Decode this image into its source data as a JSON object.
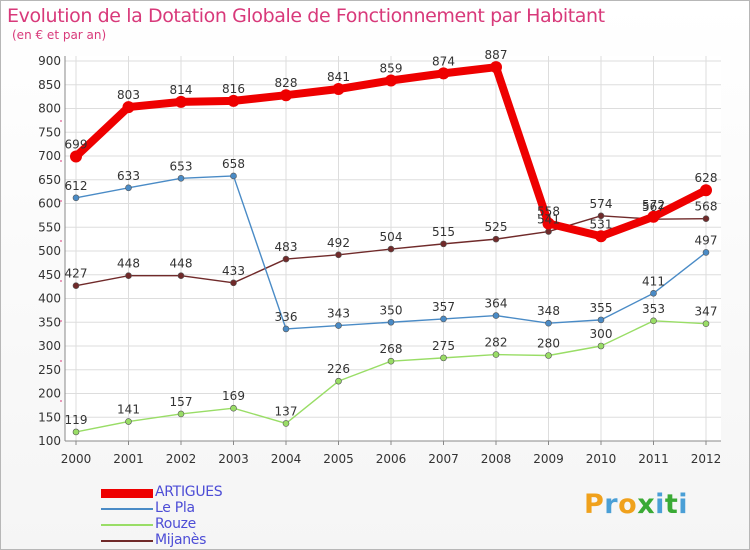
{
  "title": "Evolution de la Dotation Globale de Fonctionnement par Habitant",
  "subtitle": "(en € et par an)",
  "chart_data": {
    "type": "line",
    "title": "Evolution de la Dotation Globale de Fonctionnement par Habitant",
    "ylabel": "(en € et par an)",
    "xlabel": "",
    "grid": true,
    "ylim": [
      100,
      900
    ],
    "yticks": [
      100,
      150,
      200,
      250,
      300,
      350,
      400,
      450,
      500,
      550,
      600,
      650,
      700,
      750,
      800,
      850,
      900
    ],
    "categories": [
      "2000",
      "2001",
      "2002",
      "2003",
      "2004",
      "2005",
      "2006",
      "2007",
      "2008",
      "2009",
      "2010",
      "2011",
      "2012"
    ],
    "series": [
      {
        "name": "ARTIGUES",
        "color": "#ee0000",
        "values": [
          699,
          803,
          814,
          816,
          828,
          841,
          859,
          874,
          887,
          558,
          531,
          572,
          628
        ]
      },
      {
        "name": "Le Pla",
        "color": "#4a8bc6",
        "values": [
          612,
          633,
          653,
          658,
          336,
          343,
          350,
          357,
          364,
          348,
          355,
          411,
          497
        ]
      },
      {
        "name": "Rouze",
        "color": "#99dd66",
        "values": [
          119,
          141,
          157,
          169,
          137,
          226,
          268,
          275,
          282,
          280,
          300,
          353,
          347
        ]
      },
      {
        "name": "Mijanès",
        "color": "#702a2a",
        "values": [
          427,
          448,
          448,
          433,
          483,
          492,
          504,
          515,
          525,
          541,
          574,
          567,
          568
        ]
      }
    ],
    "legend_position": "bottom-left"
  },
  "logo": {
    "text": "Proxiti",
    "colors": [
      "#f0a11c",
      "#4a9fd6",
      "#f0a11c",
      "#3aaa35",
      "#4a9fd6",
      "#3aaa35",
      "#4a9fd6"
    ]
  }
}
